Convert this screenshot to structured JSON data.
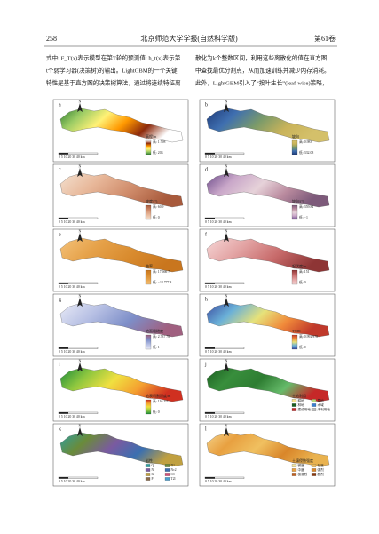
{
  "header": {
    "page_number": "258",
    "journal": "北京师范大学学报(自然科学版)",
    "volume": "第61卷"
  },
  "body": {
    "left_lines": [
      "式中: F_T(x)表示模型在第T轮的预测值; h_t(x)表示第",
      "t个弱学习器(决策树)的输出。LightGBM的一个关键",
      "特性是基于直方图的决策树算法，通过将连续特征离"
    ],
    "right_lines": [
      "散化为k个整数区间，利用这些离散化的值在直方图",
      "中查找最优分割点，从而加速训练并减少内存消耗。",
      "此外，LightGBM引入了“按叶生长”(leaf-wise)策略，"
    ]
  },
  "figure": {
    "north": "N",
    "scale_bar": "0 5 10 20 30 40 km",
    "panels": [
      {
        "label": "a",
        "legend_title": "高程/m",
        "high": "高: 1 598",
        "low": "低: 203"
      },
      {
        "label": "b",
        "legend_title": "坡向",
        "high": "高: 0.983",
        "low": "低: 332.08"
      },
      {
        "label": "c",
        "legend_title": "坡度/(°)",
        "high": "高: 60.9",
        "low": "低: 0"
      },
      {
        "label": "d",
        "legend_title": "坡向/(°)",
        "high": "高: 359.82",
        "low": "低: −1"
      },
      {
        "label": "e",
        "legend_title": "曲率",
        "high": "高: 17.666 7",
        "low": "低: −12.777 8"
      },
      {
        "label": "f",
        "legend_title": "起伏度/m",
        "high": "高: 151",
        "low": "低: 0"
      },
      {
        "label": "g",
        "legend_title": "地面粗糙度",
        "high": "高: 2.737 78",
        "low": "低: 1"
      },
      {
        "label": "h",
        "legend_title": "TVDI",
        "high": "高: 0.992 978",
        "low": "低: 0"
      },
      {
        "label": "i",
        "legend_title": "地表切割深度/m",
        "high": "高: 116.111",
        "low": "低: 0"
      },
      {
        "label": "j",
        "legend_title": "土地利用",
        "classes": [
          "耕地",
          "草地",
          "林地",
          "水域",
          "建设用地",
          "未利用地"
        ]
      },
      {
        "label": "k",
        "legend_title": "岩性",
        "classes": [
          "Q",
          "D1",
          "N",
          "Nc2",
          "K",
          "SC",
          "P",
          "T2l"
        ]
      },
      {
        "label": "l",
        "legend_title": "土壤侵蚀强度",
        "classes": [
          "微度",
          "轻度",
          "中度",
          "强烈",
          "极强烈",
          "剧烈"
        ]
      }
    ]
  }
}
